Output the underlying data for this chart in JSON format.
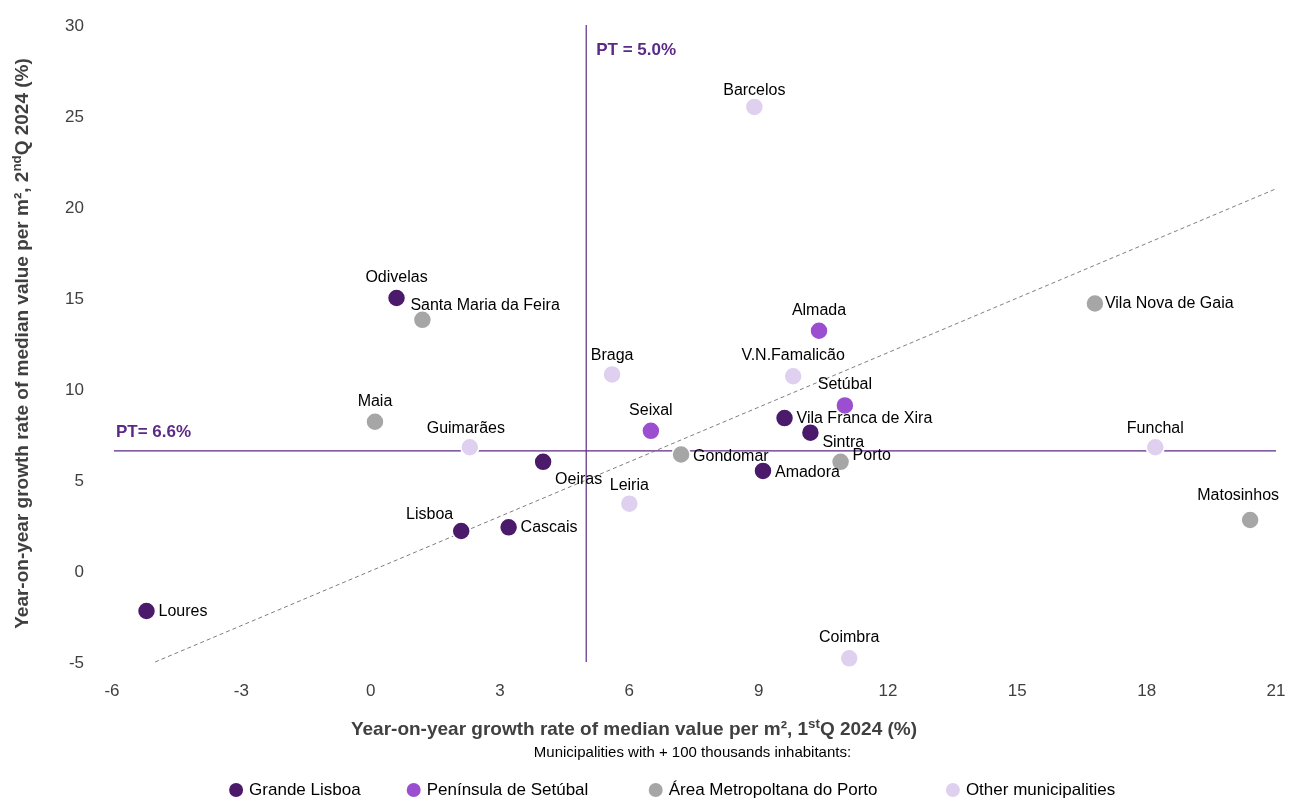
{
  "chart_data": {
    "type": "scatter",
    "xlabel": "Year-on-year growth rate of median value per m², 1$^{st}$Q 2024 (%)",
    "ylabel": "Year-on-year growth rate of median value per m², 2$^{nd}$Q 2024 (%)",
    "legend_title": "Municipalities with + 100 thousands inhabitants:",
    "legend": "bottom",
    "marker": "circle",
    "grid": false,
    "xlim": [
      -6,
      21
    ],
    "xticks": [
      -6,
      -3,
      0,
      3,
      6,
      9,
      12,
      15,
      18,
      21
    ],
    "ylim": [
      -5,
      30
    ],
    "yticks": [
      -5,
      0,
      5,
      10,
      15,
      20,
      25,
      30
    ],
    "series": [
      {
        "name": "Grande Lisboa",
        "color": "#4b1a6b",
        "x": [
          -5.2,
          0.6,
          2.1,
          3.2,
          4.0,
          9.6,
          10.2,
          9.1
        ],
        "values": [
          -2.2,
          15.0,
          2.2,
          2.4,
          6.0,
          8.4,
          7.6,
          5.5
        ]
      },
      {
        "name": "Península de Setúbal",
        "color": "#9b4fd0",
        "x": [
          10.4,
          11.0,
          6.5
        ],
        "values": [
          13.2,
          9.1,
          7.7
        ]
      },
      {
        "name": "Área Metropoltana do Porto",
        "color": "#a6a6a6",
        "x": [
          1.2,
          0.1,
          7.2,
          10.9,
          16.8,
          20.4
        ],
        "values": [
          13.8,
          8.2,
          6.4,
          6.0,
          14.7,
          2.8
        ]
      },
      {
        "name": "Other municipalities",
        "color": "#e0d0f0",
        "x": [
          8.9,
          5.6,
          9.8,
          2.3,
          6.0,
          18.2,
          11.1
        ],
        "values": [
          25.5,
          10.8,
          10.7,
          6.8,
          3.7,
          6.8,
          -4.8
        ]
      },
      {
        "type": "line",
        "color": "#7f7f7f",
        "line_style": "dashed",
        "marker": "none",
        "x": [
          -5,
          21
        ],
        "values": [
          -5,
          21
        ]
      }
    ],
    "ref_lines": [
      {
        "axis": "x",
        "value": 5.0,
        "label": "PT = 5.0%",
        "color": "#5b2a86"
      },
      {
        "axis": "y",
        "value": 6.6,
        "label": "PT= 6.6%",
        "color": "#5b2a86"
      }
    ],
    "annotations": [
      {
        "text": "Loures",
        "x": -5.2,
        "y": -2.2
      },
      {
        "text": "Odivelas",
        "x": 0.6,
        "y": 15.0
      },
      {
        "text": "Lisboa",
        "x": 2.1,
        "y": 2.2
      },
      {
        "text": "Cascais",
        "x": 3.2,
        "y": 2.4
      },
      {
        "text": "Oeiras",
        "x": 4.0,
        "y": 6.0
      },
      {
        "text": "Vila Franca de Xira",
        "x": 9.6,
        "y": 8.4
      },
      {
        "text": "Sintra",
        "x": 10.2,
        "y": 7.6
      },
      {
        "text": "Amadora",
        "x": 9.1,
        "y": 5.5
      },
      {
        "text": "Almada",
        "x": 10.4,
        "y": 13.2
      },
      {
        "text": "Setúbal",
        "x": 11.0,
        "y": 9.1
      },
      {
        "text": "Seixal",
        "x": 6.5,
        "y": 7.7
      },
      {
        "text": "Santa Maria da Feira",
        "x": 1.2,
        "y": 13.8
      },
      {
        "text": "Maia",
        "x": 0.1,
        "y": 8.2
      },
      {
        "text": "Gondomar",
        "x": 7.2,
        "y": 6.4
      },
      {
        "text": "Porto",
        "x": 10.9,
        "y": 6.0
      },
      {
        "text": "Vila Nova de Gaia",
        "x": 16.8,
        "y": 14.7
      },
      {
        "text": "Matosinhos",
        "x": 20.4,
        "y": 2.8
      },
      {
        "text": "Barcelos",
        "x": 8.9,
        "y": 25.5
      },
      {
        "text": "Braga",
        "x": 5.6,
        "y": 10.8
      },
      {
        "text": "V.N.Famalicão",
        "x": 9.8,
        "y": 10.7
      },
      {
        "text": "Guimarães",
        "x": 2.3,
        "y": 6.8
      },
      {
        "text": "Leiria",
        "x": 6.0,
        "y": 3.7
      },
      {
        "text": "Funchal",
        "x": 18.2,
        "y": 6.8
      },
      {
        "text": "Coimbra",
        "x": 11.1,
        "y": -4.8
      }
    ]
  }
}
